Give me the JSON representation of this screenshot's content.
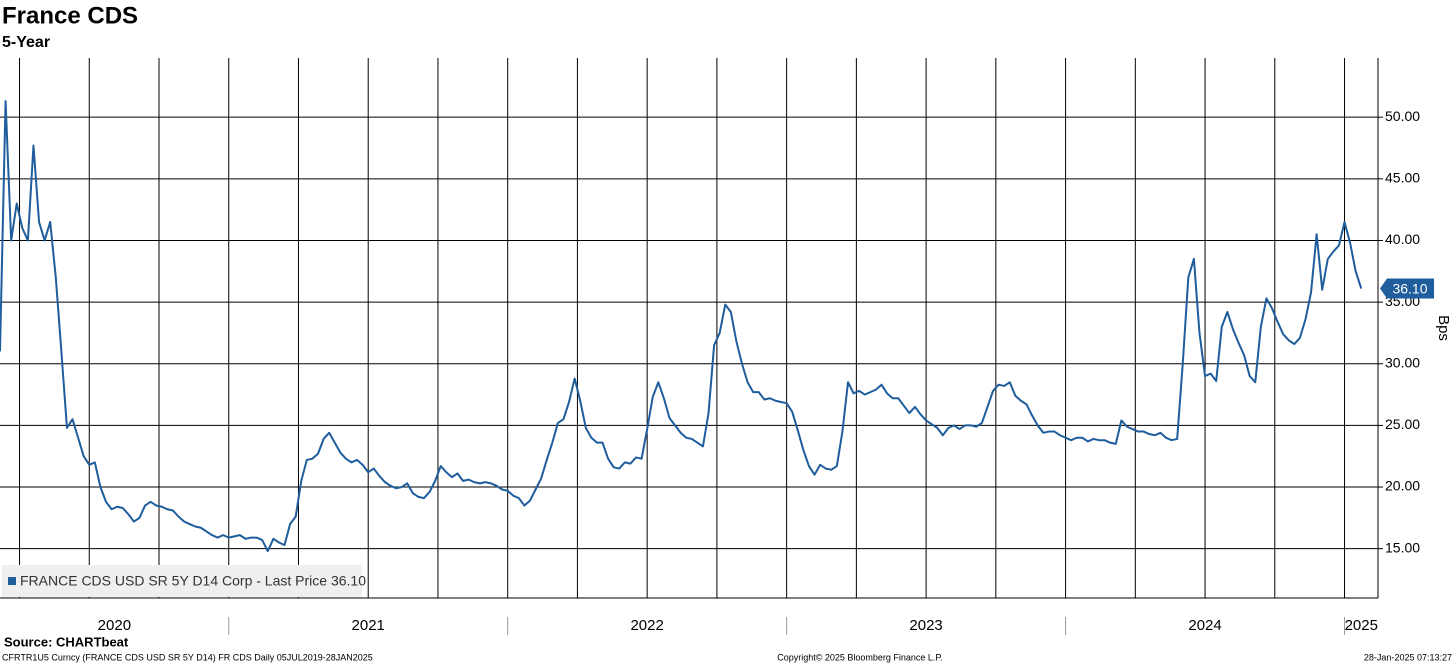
{
  "chart_data": {
    "type": "line",
    "title": "France CDS",
    "subtitle": "5-Year",
    "y_axis_label": "Bps",
    "source": "Source: CHARTbeat",
    "footer_left": "CFRTR1U5 Curncy (FRANCE CDS USD SR 5Y D14) FR CDS  Daily 05JUL2019-28JAN2025",
    "footer_center": "Copyright© 2025 Bloomberg Finance L.P.",
    "footer_right": "28-Jan-2025 07:13:27",
    "legend_label": "FRANCE CDS USD SR 5Y D14 Corp - Last Price 36.10",
    "legend_position": "lower left",
    "grid": true,
    "xlim": [
      2020.18,
      2025.12
    ],
    "ylim": [
      11,
      54.8
    ],
    "yticks": [
      {
        "value": 15,
        "label": "15.00"
      },
      {
        "value": 20,
        "label": "20.00"
      },
      {
        "value": 25,
        "label": "25.00"
      },
      {
        "value": 30,
        "label": "30.00"
      },
      {
        "value": 35,
        "label": "35.00"
      },
      {
        "value": 40,
        "label": "40.00"
      },
      {
        "value": 45,
        "label": "45.00"
      },
      {
        "value": 50,
        "label": "50.00"
      }
    ],
    "xticks": [
      2020,
      2021,
      2022,
      2023,
      2024,
      2025
    ],
    "xgrid": [
      2020.25,
      2020.5,
      2020.75,
      2021,
      2021.25,
      2021.5,
      2021.75,
      2022,
      2022.25,
      2022.5,
      2022.75,
      2023,
      2023.25,
      2023.5,
      2023.75,
      2024,
      2024.25,
      2024.5,
      2024.75,
      2025
    ],
    "series": [
      {
        "name": "FRANCE CDS USD SR 5Y D14 Corp",
        "color": "#1f5d9c",
        "last_value_label": "36.10",
        "x": [
          2020.18,
          2020.2,
          2020.22,
          2020.24,
          2020.26,
          2020.28,
          2020.3,
          2020.32,
          2020.34,
          2020.36,
          2020.38,
          2020.4,
          2020.42,
          2020.44,
          2020.46,
          2020.48,
          2020.5,
          2020.52,
          2020.54,
          2020.56,
          2020.58,
          2020.6,
          2020.62,
          2020.64,
          2020.66,
          2020.68,
          2020.7,
          2020.72,
          2020.74,
          2020.76,
          2020.78,
          2020.8,
          2020.82,
          2020.84,
          2020.86,
          2020.88,
          2020.9,
          2020.92,
          2020.94,
          2020.96,
          2020.98,
          2021,
          2021.02,
          2021.04,
          2021.06,
          2021.08,
          2021.1,
          2021.12,
          2021.14,
          2021.16,
          2021.18,
          2021.2,
          2021.22,
          2021.24,
          2021.26,
          2021.28,
          2021.3,
          2021.32,
          2021.34,
          2021.36,
          2021.38,
          2021.4,
          2021.42,
          2021.44,
          2021.46,
          2021.48,
          2021.5,
          2021.52,
          2021.54,
          2021.56,
          2021.58,
          2021.6,
          2021.62,
          2021.64,
          2021.66,
          2021.68,
          2021.7,
          2021.72,
          2021.74,
          2021.76,
          2021.78,
          2021.8,
          2021.82,
          2021.84,
          2021.86,
          2021.88,
          2021.9,
          2021.92,
          2021.94,
          2021.96,
          2021.98,
          2022,
          2022.02,
          2022.04,
          2022.06,
          2022.08,
          2022.1,
          2022.12,
          2022.14,
          2022.16,
          2022.18,
          2022.2,
          2022.22,
          2022.24,
          2022.26,
          2022.28,
          2022.3,
          2022.32,
          2022.34,
          2022.36,
          2022.38,
          2022.4,
          2022.42,
          2022.44,
          2022.46,
          2022.48,
          2022.5,
          2022.52,
          2022.54,
          2022.56,
          2022.58,
          2022.6,
          2022.62,
          2022.64,
          2022.66,
          2022.68,
          2022.7,
          2022.72,
          2022.74,
          2022.76,
          2022.78,
          2022.8,
          2022.82,
          2022.84,
          2022.86,
          2022.88,
          2022.9,
          2022.92,
          2022.94,
          2022.96,
          2022.98,
          2023,
          2023.02,
          2023.04,
          2023.06,
          2023.08,
          2023.1,
          2023.12,
          2023.14,
          2023.16,
          2023.18,
          2023.2,
          2023.22,
          2023.24,
          2023.26,
          2023.28,
          2023.3,
          2023.32,
          2023.34,
          2023.36,
          2023.38,
          2023.4,
          2023.42,
          2023.44,
          2023.46,
          2023.48,
          2023.5,
          2023.52,
          2023.54,
          2023.56,
          2023.58,
          2023.6,
          2023.62,
          2023.64,
          2023.66,
          2023.68,
          2023.7,
          2023.72,
          2023.74,
          2023.76,
          2023.78,
          2023.8,
          2023.82,
          2023.84,
          2023.86,
          2023.88,
          2023.9,
          2023.92,
          2023.94,
          2023.96,
          2023.98,
          2024,
          2024.02,
          2024.04,
          2024.06,
          2024.08,
          2024.1,
          2024.12,
          2024.14,
          2024.16,
          2024.18,
          2024.2,
          2024.22,
          2024.24,
          2024.26,
          2024.28,
          2024.3,
          2024.32,
          2024.34,
          2024.36,
          2024.38,
          2024.4,
          2024.42,
          2024.44,
          2024.46,
          2024.48,
          2024.5,
          2024.52,
          2024.54,
          2024.56,
          2024.58,
          2024.6,
          2024.62,
          2024.64,
          2024.66,
          2024.68,
          2024.7,
          2024.72,
          2024.74,
          2024.76,
          2024.78,
          2024.8,
          2024.82,
          2024.84,
          2024.86,
          2024.88,
          2024.9,
          2024.92,
          2024.94,
          2024.96,
          2024.98,
          2025,
          2025.02,
          2025.04,
          2025.06
        ],
        "values": [
          31,
          51.3,
          40,
          43,
          41,
          40,
          47.7,
          41.5,
          40,
          41.5,
          37,
          31,
          24.8,
          25.5,
          24,
          22.5,
          21.8,
          22,
          20,
          18.8,
          18.2,
          18.4,
          18.3,
          17.8,
          17.2,
          17.5,
          18.5,
          18.8,
          18.5,
          18.4,
          18.2,
          18.1,
          17.6,
          17.2,
          17,
          16.8,
          16.7,
          16.4,
          16.1,
          15.9,
          16.1,
          15.9,
          16,
          16.1,
          15.8,
          15.9,
          15.9,
          15.7,
          14.8,
          15.8,
          15.5,
          15.3,
          17,
          17.6,
          20.5,
          22.2,
          22.3,
          22.7,
          23.9,
          24.4,
          23.6,
          22.8,
          22.3,
          22,
          22.2,
          21.8,
          21.2,
          21.5,
          20.9,
          20.4,
          20.1,
          19.9,
          20,
          20.3,
          19.5,
          19.2,
          19.1,
          19.6,
          20.5,
          21.7,
          21.2,
          20.8,
          21.1,
          20.5,
          20.6,
          20.4,
          20.3,
          20.4,
          20.3,
          20.1,
          19.8,
          19.7,
          19.3,
          19.1,
          18.5,
          18.9,
          19.8,
          20.7,
          22.2,
          23.6,
          25.2,
          25.5,
          26.9,
          28.8,
          27,
          24.8,
          24,
          23.6,
          23.6,
          22.3,
          21.6,
          21.5,
          22,
          21.9,
          22.4,
          22.3,
          24.7,
          27.3,
          28.5,
          27.2,
          25.6,
          25,
          24.4,
          24,
          23.9,
          23.6,
          23.3,
          26,
          31.5,
          32.5,
          34.8,
          34.2,
          31.8,
          30,
          28.5,
          27.7,
          27.7,
          27.1,
          27.2,
          27,
          26.9,
          26.8,
          26.1,
          24.6,
          23,
          21.7,
          21,
          21.8,
          21.5,
          21.4,
          21.7,
          24.5,
          28.5,
          27.6,
          27.8,
          27.5,
          27.7,
          27.9,
          28.3,
          27.6,
          27.2,
          27.2,
          26.6,
          26,
          26.5,
          25.9,
          25.4,
          25.1,
          24.8,
          24.2,
          24.8,
          25,
          24.7,
          25,
          25,
          24.9,
          25.2,
          26.5,
          27.8,
          28.3,
          28.2,
          28.5,
          27.4,
          27,
          26.7,
          25.8,
          25,
          24.4,
          24.5,
          24.5,
          24.2,
          24,
          23.8,
          24,
          24,
          23.7,
          23.9,
          23.8,
          23.8,
          23.6,
          23.5,
          25.4,
          24.9,
          24.7,
          24.5,
          24.5,
          24.3,
          24.2,
          24.4,
          24,
          23.8,
          23.9,
          30,
          37,
          38.5,
          32.5,
          29,
          29.2,
          28.6,
          33,
          34.2,
          32.8,
          31.7,
          30.7,
          29,
          28.5,
          33,
          35.3,
          34.5,
          33.4,
          32.4,
          31.9,
          31.6,
          32.1,
          33.6,
          35.8,
          40.5,
          36,
          38.5,
          39.1,
          39.6,
          41.5,
          39.8,
          37.5,
          36.1
        ]
      }
    ]
  }
}
